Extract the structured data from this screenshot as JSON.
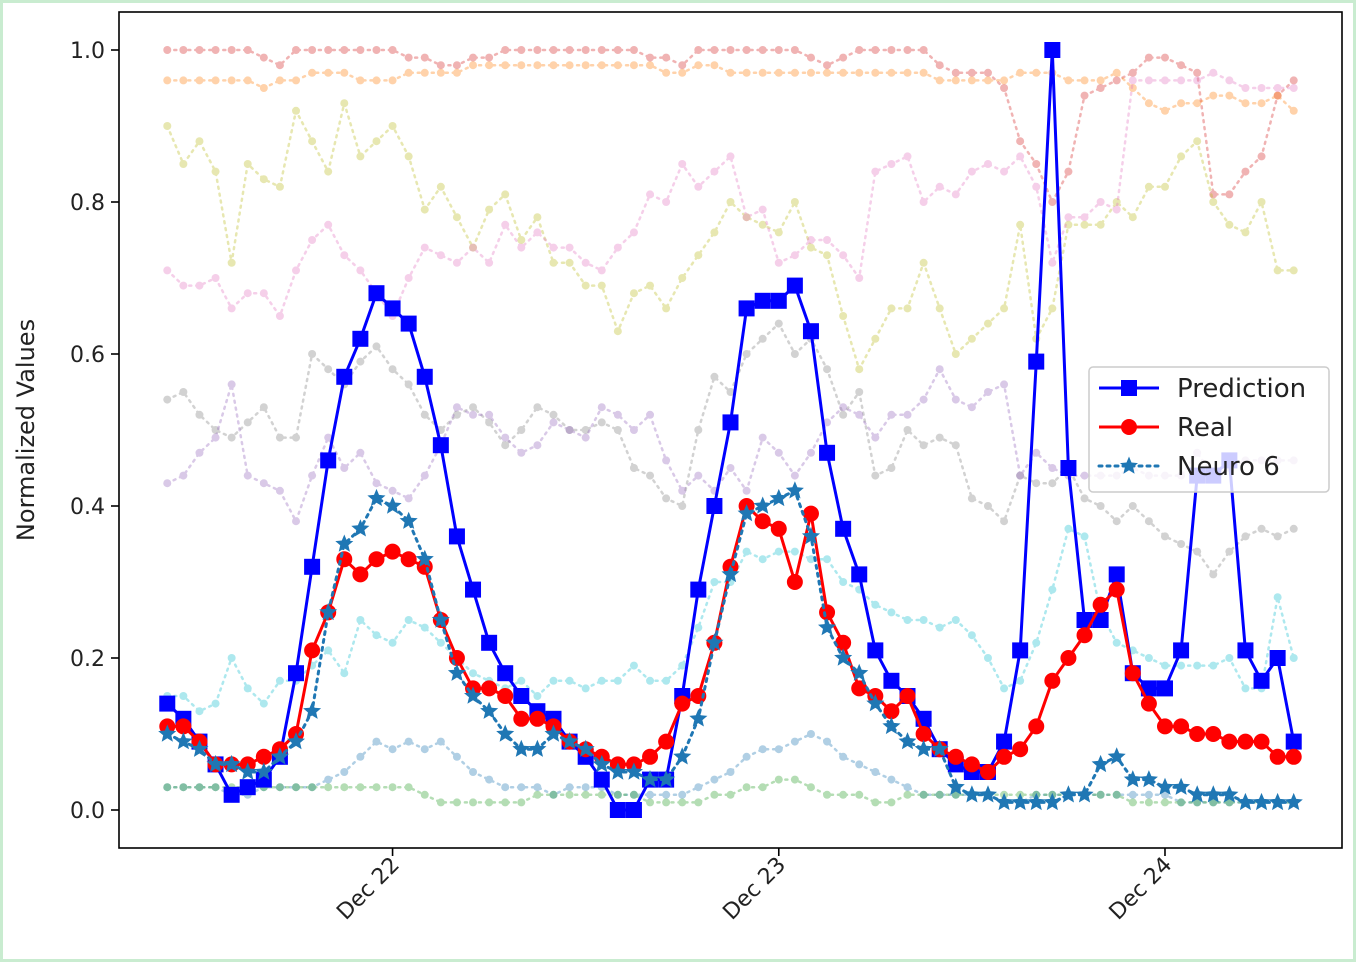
{
  "chart_data": {
    "type": "line",
    "title": "",
    "xlabel": "",
    "ylabel": "Normalized Values",
    "ylim": [
      -0.05,
      1.05
    ],
    "yticks": [
      0.0,
      0.2,
      0.4,
      0.6,
      0.8,
      1.0
    ],
    "ytick_labels": [
      "0.0",
      "0.2",
      "0.4",
      "0.6",
      "0.8",
      "1.0"
    ],
    "xlim": [
      "2024-12-21 07:00",
      "2024-12-24 11:00"
    ],
    "x_start": "2024-12-21 10:00",
    "x_step_hours": 1,
    "xticks": [
      "2024-12-22 00:00",
      "2024-12-23 00:00",
      "2024-12-24 00:00"
    ],
    "xtick_labels": [
      "Dec 22",
      "Dec 23",
      "Dec 24"
    ],
    "grid": false,
    "legend_position": "center-right",
    "series": [
      {
        "name": "Prediction",
        "color": "#0000ff",
        "style": "solid-square",
        "in_legend": true,
        "values": [
          0.14,
          0.12,
          0.09,
          0.06,
          0.02,
          0.03,
          0.04,
          0.07,
          0.18,
          0.32,
          0.46,
          0.57,
          0.62,
          0.68,
          0.66,
          0.64,
          0.57,
          0.48,
          0.36,
          0.29,
          0.22,
          0.18,
          0.15,
          0.13,
          0.12,
          0.09,
          0.07,
          0.04,
          0.0,
          0.0,
          0.04,
          0.04,
          0.15,
          0.29,
          0.4,
          0.51,
          0.66,
          0.67,
          0.67,
          0.69,
          0.63,
          0.47,
          0.37,
          0.31,
          0.21,
          0.17,
          0.15,
          0.12,
          0.08,
          0.06,
          0.05,
          0.05,
          0.09,
          0.21,
          0.59,
          1.0,
          0.45,
          0.25,
          0.25,
          0.31,
          0.18,
          0.16,
          0.16,
          0.21,
          0.44,
          0.44,
          0.46,
          0.21,
          0.17,
          0.2,
          0.09
        ]
      },
      {
        "name": "Real",
        "color": "#ff0000",
        "style": "solid-circle",
        "in_legend": true,
        "values": [
          0.11,
          0.11,
          0.09,
          0.06,
          0.06,
          0.06,
          0.07,
          0.08,
          0.1,
          0.21,
          0.26,
          0.33,
          0.31,
          0.33,
          0.34,
          0.33,
          0.32,
          0.25,
          0.2,
          0.16,
          0.16,
          0.15,
          0.12,
          0.12,
          0.11,
          0.09,
          0.08,
          0.07,
          0.06,
          0.06,
          0.07,
          0.09,
          0.14,
          0.15,
          0.22,
          0.32,
          0.4,
          0.38,
          0.37,
          0.3,
          0.39,
          0.26,
          0.22,
          0.16,
          0.15,
          0.13,
          0.15,
          0.1,
          0.08,
          0.07,
          0.06,
          0.05,
          0.07,
          0.08,
          0.11,
          0.17,
          0.2,
          0.23,
          0.27,
          0.29,
          0.18,
          0.14,
          0.11,
          0.11,
          0.1,
          0.1,
          0.09,
          0.09,
          0.09,
          0.07,
          0.07
        ]
      },
      {
        "name": "Neuro 6",
        "color": "#1f77b4",
        "style": "dotted-star",
        "in_legend": true,
        "values": [
          0.1,
          0.09,
          0.08,
          0.06,
          0.06,
          0.05,
          0.05,
          0.07,
          0.09,
          0.13,
          0.26,
          0.35,
          0.37,
          0.41,
          0.4,
          0.38,
          0.33,
          0.25,
          0.18,
          0.15,
          0.13,
          0.1,
          0.08,
          0.08,
          0.1,
          0.09,
          0.08,
          0.06,
          0.05,
          0.05,
          0.04,
          0.04,
          0.07,
          0.12,
          0.22,
          0.31,
          0.39,
          0.4,
          0.41,
          0.42,
          0.36,
          0.24,
          0.2,
          0.18,
          0.14,
          0.11,
          0.09,
          0.08,
          0.08,
          0.03,
          0.02,
          0.02,
          0.01,
          0.01,
          0.01,
          0.01,
          0.02,
          0.02,
          0.06,
          0.07,
          0.04,
          0.04,
          0.03,
          0.03,
          0.02,
          0.02,
          0.02,
          0.01,
          0.01,
          0.01,
          0.01
        ]
      },
      {
        "name": "",
        "color": "#d62728",
        "style": "faint-dotted",
        "in_legend": false,
        "values": [
          1.0,
          1.0,
          1.0,
          1.0,
          1.0,
          1.0,
          0.99,
          0.98,
          1.0,
          1.0,
          1.0,
          1.0,
          1.0,
          1.0,
          1.0,
          0.99,
          0.99,
          0.98,
          0.98,
          0.99,
          0.99,
          1.0,
          1.0,
          1.0,
          1.0,
          1.0,
          1.0,
          1.0,
          1.0,
          1.0,
          0.99,
          0.99,
          0.98,
          1.0,
          1.0,
          1.0,
          1.0,
          1.0,
          1.0,
          1.0,
          0.99,
          0.98,
          0.99,
          1.0,
          1.0,
          1.0,
          1.0,
          1.0,
          0.98,
          0.97,
          0.97,
          0.97,
          0.95,
          0.88,
          0.85,
          0.8,
          0.84,
          0.94,
          0.95,
          0.96,
          0.97,
          0.99,
          0.99,
          0.98,
          0.97,
          0.81,
          0.81,
          0.84,
          0.86,
          0.94,
          0.96
        ]
      },
      {
        "name": "",
        "color": "#ff7f0e",
        "style": "faint-dotted",
        "in_legend": false,
        "values": [
          0.96,
          0.96,
          0.96,
          0.96,
          0.96,
          0.96,
          0.95,
          0.96,
          0.96,
          0.97,
          0.97,
          0.97,
          0.96,
          0.96,
          0.96,
          0.97,
          0.97,
          0.97,
          0.97,
          0.98,
          0.98,
          0.98,
          0.98,
          0.98,
          0.98,
          0.98,
          0.98,
          0.98,
          0.98,
          0.98,
          0.98,
          0.97,
          0.97,
          0.98,
          0.98,
          0.97,
          0.97,
          0.97,
          0.97,
          0.97,
          0.97,
          0.97,
          0.97,
          0.97,
          0.97,
          0.97,
          0.97,
          0.97,
          0.96,
          0.96,
          0.96,
          0.96,
          0.96,
          0.97,
          0.97,
          0.97,
          0.96,
          0.96,
          0.96,
          0.97,
          0.95,
          0.93,
          0.92,
          0.93,
          0.93,
          0.94,
          0.94,
          0.93,
          0.93,
          0.94,
          0.92
        ]
      },
      {
        "name": "",
        "color": "#bcbd22",
        "style": "faint-dotted",
        "in_legend": false,
        "values": [
          0.9,
          0.85,
          0.88,
          0.84,
          0.72,
          0.85,
          0.83,
          0.82,
          0.92,
          0.88,
          0.84,
          0.93,
          0.86,
          0.88,
          0.9,
          0.86,
          0.79,
          0.82,
          0.78,
          0.74,
          0.79,
          0.81,
          0.75,
          0.78,
          0.72,
          0.72,
          0.69,
          0.69,
          0.63,
          0.68,
          0.69,
          0.66,
          0.7,
          0.73,
          0.76,
          0.8,
          0.78,
          0.77,
          0.76,
          0.8,
          0.74,
          0.73,
          0.65,
          0.58,
          0.62,
          0.66,
          0.66,
          0.72,
          0.66,
          0.6,
          0.62,
          0.64,
          0.66,
          0.77,
          0.62,
          0.66,
          0.77,
          0.77,
          0.77,
          0.8,
          0.78,
          0.82,
          0.82,
          0.86,
          0.88,
          0.8,
          0.77,
          0.76,
          0.8,
          0.71,
          0.71
        ]
      },
      {
        "name": "",
        "color": "#e377c2",
        "style": "faint-dotted",
        "in_legend": false,
        "values": [
          0.71,
          0.69,
          0.69,
          0.7,
          0.66,
          0.68,
          0.68,
          0.65,
          0.71,
          0.75,
          0.77,
          0.73,
          0.71,
          0.68,
          0.65,
          0.7,
          0.74,
          0.73,
          0.72,
          0.74,
          0.72,
          0.77,
          0.74,
          0.76,
          0.74,
          0.74,
          0.72,
          0.71,
          0.74,
          0.76,
          0.81,
          0.8,
          0.85,
          0.82,
          0.84,
          0.86,
          0.78,
          0.79,
          0.72,
          0.73,
          0.75,
          0.75,
          0.73,
          0.7,
          0.84,
          0.85,
          0.86,
          0.8,
          0.82,
          0.81,
          0.84,
          0.85,
          0.84,
          0.86,
          0.82,
          0.72,
          0.78,
          0.78,
          0.8,
          0.79,
          0.96,
          0.96,
          0.96,
          0.96,
          0.96,
          0.97,
          0.96,
          0.95,
          0.95,
          0.95,
          0.95
        ]
      },
      {
        "name": "",
        "color": "#7f7f7f",
        "style": "faint-dotted",
        "in_legend": false,
        "values": [
          0.54,
          0.55,
          0.52,
          0.5,
          0.49,
          0.51,
          0.53,
          0.49,
          0.49,
          0.6,
          0.58,
          0.56,
          0.59,
          0.61,
          0.58,
          0.56,
          0.52,
          0.5,
          0.52,
          0.53,
          0.51,
          0.48,
          0.5,
          0.53,
          0.52,
          0.5,
          0.5,
          0.51,
          0.5,
          0.45,
          0.44,
          0.41,
          0.4,
          0.5,
          0.57,
          0.55,
          0.6,
          0.62,
          0.64,
          0.6,
          0.62,
          0.58,
          0.52,
          0.55,
          0.44,
          0.45,
          0.5,
          0.48,
          0.49,
          0.48,
          0.41,
          0.4,
          0.38,
          0.44,
          0.43,
          0.43,
          0.45,
          0.41,
          0.4,
          0.38,
          0.4,
          0.38,
          0.36,
          0.35,
          0.34,
          0.31,
          0.34,
          0.36,
          0.37,
          0.36,
          0.37
        ]
      },
      {
        "name": "",
        "color": "#9467bd",
        "style": "faint-dotted",
        "in_legend": false,
        "values": [
          0.43,
          0.44,
          0.47,
          0.49,
          0.56,
          0.44,
          0.43,
          0.42,
          0.38,
          0.44,
          0.49,
          0.45,
          0.47,
          0.43,
          0.42,
          0.41,
          0.44,
          0.48,
          0.53,
          0.52,
          0.52,
          0.49,
          0.47,
          0.48,
          0.51,
          0.5,
          0.49,
          0.53,
          0.52,
          0.5,
          0.52,
          0.46,
          0.42,
          0.44,
          0.42,
          0.45,
          0.42,
          0.49,
          0.47,
          0.44,
          0.47,
          0.51,
          0.53,
          0.52,
          0.49,
          0.52,
          0.52,
          0.54,
          0.58,
          0.54,
          0.53,
          0.55,
          0.56,
          0.44,
          0.47,
          0.45,
          0.44,
          0.44,
          0.44,
          0.44,
          0.45,
          0.44,
          0.44,
          0.44,
          0.47,
          0.44,
          0.45,
          0.46,
          0.46,
          0.46,
          0.46
        ]
      },
      {
        "name": "",
        "color": "#17becf",
        "style": "faint-dotted",
        "in_legend": false,
        "values": [
          0.15,
          0.15,
          0.13,
          0.14,
          0.2,
          0.16,
          0.14,
          0.17,
          0.17,
          0.19,
          0.21,
          0.18,
          0.25,
          0.23,
          0.22,
          0.25,
          0.24,
          0.22,
          0.2,
          0.18,
          0.17,
          0.16,
          0.17,
          0.15,
          0.17,
          0.17,
          0.16,
          0.17,
          0.17,
          0.19,
          0.17,
          0.17,
          0.19,
          0.24,
          0.3,
          0.3,
          0.34,
          0.33,
          0.34,
          0.34,
          0.33,
          0.33,
          0.3,
          0.29,
          0.27,
          0.26,
          0.25,
          0.25,
          0.24,
          0.25,
          0.23,
          0.2,
          0.16,
          0.17,
          0.22,
          0.29,
          0.37,
          0.36,
          0.26,
          0.22,
          0.21,
          0.2,
          0.19,
          0.19,
          0.19,
          0.19,
          0.2,
          0.16,
          0.16,
          0.28,
          0.2
        ]
      },
      {
        "name": "",
        "color": "#1f77b4",
        "style": "faint-dotted",
        "in_legend": false,
        "values": [
          0.03,
          0.03,
          0.03,
          0.03,
          0.02,
          0.02,
          0.03,
          0.03,
          0.03,
          0.03,
          0.04,
          0.05,
          0.07,
          0.09,
          0.08,
          0.09,
          0.08,
          0.09,
          0.07,
          0.05,
          0.04,
          0.03,
          0.03,
          0.03,
          0.02,
          0.03,
          0.03,
          0.03,
          0.02,
          0.02,
          0.02,
          0.02,
          0.02,
          0.03,
          0.04,
          0.05,
          0.07,
          0.08,
          0.08,
          0.09,
          0.1,
          0.09,
          0.07,
          0.06,
          0.05,
          0.04,
          0.03,
          0.02,
          0.02,
          0.02,
          0.02,
          0.02,
          0.01,
          0.01,
          0.02,
          0.02,
          0.02,
          0.02,
          0.02,
          0.02,
          0.02,
          0.02,
          0.02,
          0.01,
          0.01,
          0.01,
          0.01,
          0.01,
          0.01,
          0.01,
          0.01
        ]
      },
      {
        "name": "",
        "color": "#2ca02c",
        "style": "faint-dotted",
        "in_legend": false,
        "values": [
          0.03,
          0.03,
          0.03,
          0.03,
          0.03,
          0.03,
          0.03,
          0.03,
          0.03,
          0.03,
          0.03,
          0.03,
          0.03,
          0.03,
          0.03,
          0.03,
          0.02,
          0.01,
          0.01,
          0.01,
          0.01,
          0.01,
          0.01,
          0.02,
          0.02,
          0.02,
          0.02,
          0.02,
          0.02,
          0.02,
          0.01,
          0.01,
          0.01,
          0.01,
          0.02,
          0.02,
          0.03,
          0.03,
          0.04,
          0.04,
          0.03,
          0.02,
          0.02,
          0.02,
          0.01,
          0.01,
          0.02,
          0.02,
          0.02,
          0.02,
          0.02,
          0.02,
          0.02,
          0.02,
          0.02,
          0.02,
          0.02,
          0.02,
          0.02,
          0.02,
          0.01,
          0.01,
          0.01,
          0.01,
          0.01,
          0.01,
          0.01,
          0.01,
          0.01,
          0.01,
          0.01
        ]
      }
    ]
  }
}
